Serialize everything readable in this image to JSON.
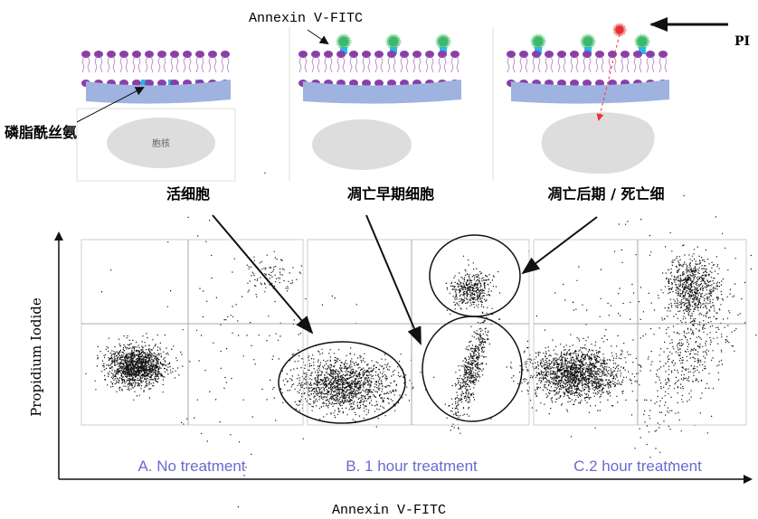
{
  "top_panel": {
    "marker_label": "Annexin V-FITC",
    "pi_label": "PI",
    "ps_label": "磷脂酰丝氨",
    "nucleus_label": "胞核",
    "stages": [
      "活细胞",
      "凋亡早期细胞",
      "凋亡后期 / 死亡细"
    ]
  },
  "plots": {
    "y_axis_label": "Propidium Iodide",
    "x_axis_label": "Annexin V-FITC",
    "panels": [
      "A. No treatment",
      "B.  1 hour treatment",
      "C.2 hour treatment"
    ]
  }
}
